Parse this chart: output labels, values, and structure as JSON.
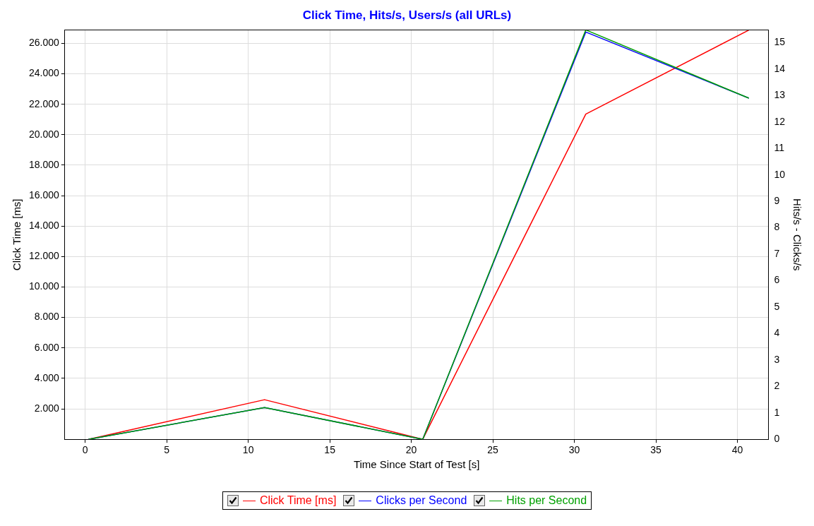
{
  "chart_data": {
    "type": "line",
    "title": "Click Time, Hits/s, Users/s (all URLs)",
    "xlabel": "Time Since Start of Test [s]",
    "ylabel": "Click Time [ms]",
    "y2label": "Hits/s - Clicks/s",
    "xlim": [
      -1.25,
      41.9
    ],
    "xticks": [
      0,
      5,
      10,
      15,
      20,
      25,
      30,
      35,
      40
    ],
    "ylim": [
      0,
      26880
    ],
    "yticks": [
      {
        "value": 2000,
        "label": "2.000"
      },
      {
        "value": 4000,
        "label": "4.000"
      },
      {
        "value": 6000,
        "label": "6.000"
      },
      {
        "value": 8000,
        "label": "8.000"
      },
      {
        "value": 10000,
        "label": "10.000"
      },
      {
        "value": 12000,
        "label": "12.000"
      },
      {
        "value": 14000,
        "label": "14.000"
      },
      {
        "value": 16000,
        "label": "16.000"
      },
      {
        "value": 18000,
        "label": "18.000"
      },
      {
        "value": 20000,
        "label": "20.000"
      },
      {
        "value": 22000,
        "label": "22.000"
      },
      {
        "value": 24000,
        "label": "24.000"
      },
      {
        "value": 26000,
        "label": "26.000"
      }
    ],
    "y2lim": [
      0,
      15.48
    ],
    "y2ticks": [
      0,
      1,
      2,
      3,
      4,
      5,
      6,
      7,
      8,
      9,
      10,
      11,
      12,
      13,
      14,
      15
    ],
    "x": [
      0.2,
      11,
      20.7,
      30.7,
      40.7
    ],
    "series": [
      {
        "name": "Click Time [ms]",
        "color": "#ff0000",
        "values": [
          0,
          2600,
          0,
          21350,
          26870
        ]
      },
      {
        "name": "Clicks per Second",
        "color": "#0000ff",
        "axis": "y2",
        "values": [
          0,
          1.2,
          0,
          15.4,
          12.9
        ]
      },
      {
        "name": "Hits per Second",
        "color": "#00a000",
        "axis": "y2",
        "values": [
          0,
          1.2,
          0,
          15.48,
          12.9
        ]
      }
    ],
    "grid": true,
    "legend": "bottom",
    "marker": "none",
    "line_style": "solid"
  }
}
